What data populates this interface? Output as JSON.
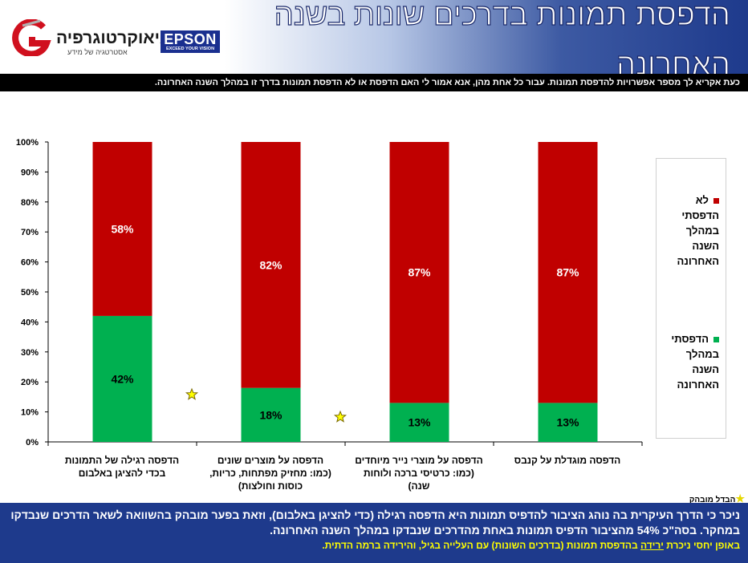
{
  "header": {
    "title": "הדפסת תמונות בדרכים שונות בשנה האחרונה",
    "logo_name": "גיאוקרטוגרפיה",
    "logo_tagline": "אסטרטגיה של מידע",
    "epson_name": "EPSON",
    "epson_tagline": "EXCEED YOUR VISION"
  },
  "instruction": "כעת אקריא לך מספר אפשרויות להדפסת תמונות. עבור כל אחת מהן, אנא אמור לי האם הדפסת או לא הדפסת תמונות בדרך זו במהלך השנה האחרונה.",
  "colors": {
    "printed": "#00b050",
    "not_printed": "#c00000",
    "footer_bg": "#1e3a8c",
    "footer_highlight": "#ffff00"
  },
  "chart_data": {
    "type": "bar",
    "stacked": true,
    "percent_axis": true,
    "ylim": [
      0,
      100
    ],
    "y_ticks": [
      "0%",
      "10%",
      "20%",
      "30%",
      "40%",
      "50%",
      "60%",
      "70%",
      "80%",
      "90%",
      "100%"
    ],
    "categories": [
      "הדפסה רגילה של התמונות בכדי להציגן באלבום",
      "הדפסה על מוצרים שונים (כמו: מחזיק מפתחות, כריות, כוסות וחולצות)",
      "הדפסה על מוצרי נייר מיוחדים (כמו: כרטיסי ברכה ולוחות שנה)",
      "הדפסה מוגדלת על קנבס"
    ],
    "series": [
      {
        "name": "הדפסתי במהלך השנה האחרונה",
        "values": [
          42,
          18,
          13,
          13
        ],
        "labels": [
          "42%",
          "18%",
          "13%",
          "13%"
        ]
      },
      {
        "name": "לא הדפסתי במהלך השנה האחרונה",
        "values": [
          58,
          82,
          87,
          87
        ],
        "labels": [
          "58%",
          "82%",
          "87%",
          "87%"
        ]
      }
    ],
    "significant_difference_marks": [
      "between categories 1 and 2",
      "between categories 2 and 3"
    ],
    "star_legend": "הבדל מובהק",
    "legend_position": "right",
    "grid": false
  },
  "footer": {
    "line1": "ניכר כי הדרך העיקרית בה נוהג הציבור להדפיס תמונות היא הדפסה רגילה (כדי להציגן באלבום), וזאת בפער מובהק בהשוואה לשאר הדרכים שנבדקו במחקר. בסה\"כ 54% מהציבור הדפיס תמונות באחת מהדרכים שנבדקו במהלך השנה האחרונה.",
    "line2_prefix": "באופן יחסי ניכרת",
    "line2_underlined": "ירידה",
    "line2_suffix": "בהדפסת תמונות (בדרכים השונות) עם העלייה בגיל, והירידה ברמה הדתית."
  }
}
